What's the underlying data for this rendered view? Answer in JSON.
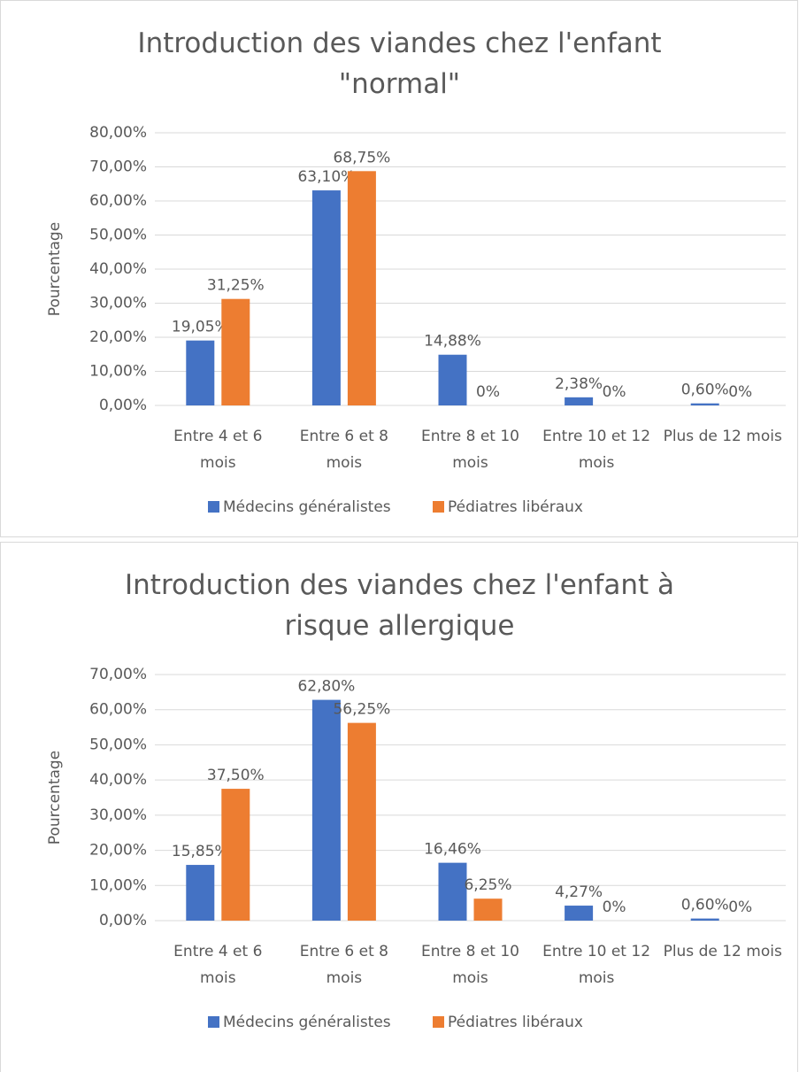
{
  "chart_data": [
    {
      "type": "bar",
      "title": "Introduction des viandes chez l'enfant \"normal\"",
      "y_label": "Pourcentage",
      "categories": [
        "Entre 4 et 6 mois",
        "Entre 6 et 8 mois",
        "Entre 8 et 10 mois",
        "Entre 10 et 12 mois",
        "Plus de 12 mois"
      ],
      "series": [
        {
          "name": "Médecins généralistes",
          "color": "#4472c4",
          "values": [
            19.05,
            63.1,
            14.88,
            2.38,
            0.6
          ],
          "value_labels": [
            "19,05%",
            "63,10%",
            "14,88%",
            "2,38%",
            "0,60%"
          ]
        },
        {
          "name": "Pédiatres libéraux",
          "color": "#ed7d31",
          "values": [
            31.25,
            68.75,
            0,
            0,
            0
          ],
          "value_labels": [
            "31,25%",
            "68,75%",
            "0%",
            "0%",
            "0%"
          ]
        }
      ],
      "ylim": [
        0,
        80
      ],
      "yticks": [
        {
          "value": 0,
          "label": "0,00%"
        },
        {
          "value": 10,
          "label": "10,00%"
        },
        {
          "value": 20,
          "label": "20,00%"
        },
        {
          "value": 30,
          "label": "30,00%"
        },
        {
          "value": 40,
          "label": "40,00%"
        },
        {
          "value": 50,
          "label": "50,00%"
        },
        {
          "value": 60,
          "label": "60,00%"
        },
        {
          "value": 70,
          "label": "70,00%"
        },
        {
          "value": 80,
          "label": "80,00%"
        }
      ],
      "grid": true,
      "legend": "bottom"
    },
    {
      "type": "bar",
      "title": "Introduction des viandes chez l'enfant à risque allergique",
      "y_label": "Pourcentage",
      "categories": [
        "Entre 4 et 6 mois",
        "Entre 6 et 8 mois",
        "Entre 8 et 10 mois",
        "Entre 10 et 12 mois",
        "Plus de 12 mois"
      ],
      "series": [
        {
          "name": "Médecins généralistes",
          "color": "#4472c4",
          "values": [
            15.85,
            62.8,
            16.46,
            4.27,
            0.6
          ],
          "value_labels": [
            "15,85%",
            "62,80%",
            "16,46%",
            "4,27%",
            "0,60%"
          ]
        },
        {
          "name": "Pédiatres libéraux",
          "color": "#ed7d31",
          "values": [
            37.5,
            56.25,
            6.25,
            0,
            0
          ],
          "value_labels": [
            "37,50%",
            "56,25%",
            "6,25%",
            "0%",
            "0%"
          ]
        }
      ],
      "ylim": [
        0,
        70
      ],
      "yticks": [
        {
          "value": 0,
          "label": "0,00%"
        },
        {
          "value": 10,
          "label": "10,00%"
        },
        {
          "value": 20,
          "label": "20,00%"
        },
        {
          "value": 30,
          "label": "30,00%"
        },
        {
          "value": 40,
          "label": "40,00%"
        },
        {
          "value": 50,
          "label": "50,00%"
        },
        {
          "value": 60,
          "label": "60,00%"
        },
        {
          "value": 70,
          "label": "70,00%"
        }
      ],
      "grid": true,
      "legend": "bottom"
    }
  ]
}
